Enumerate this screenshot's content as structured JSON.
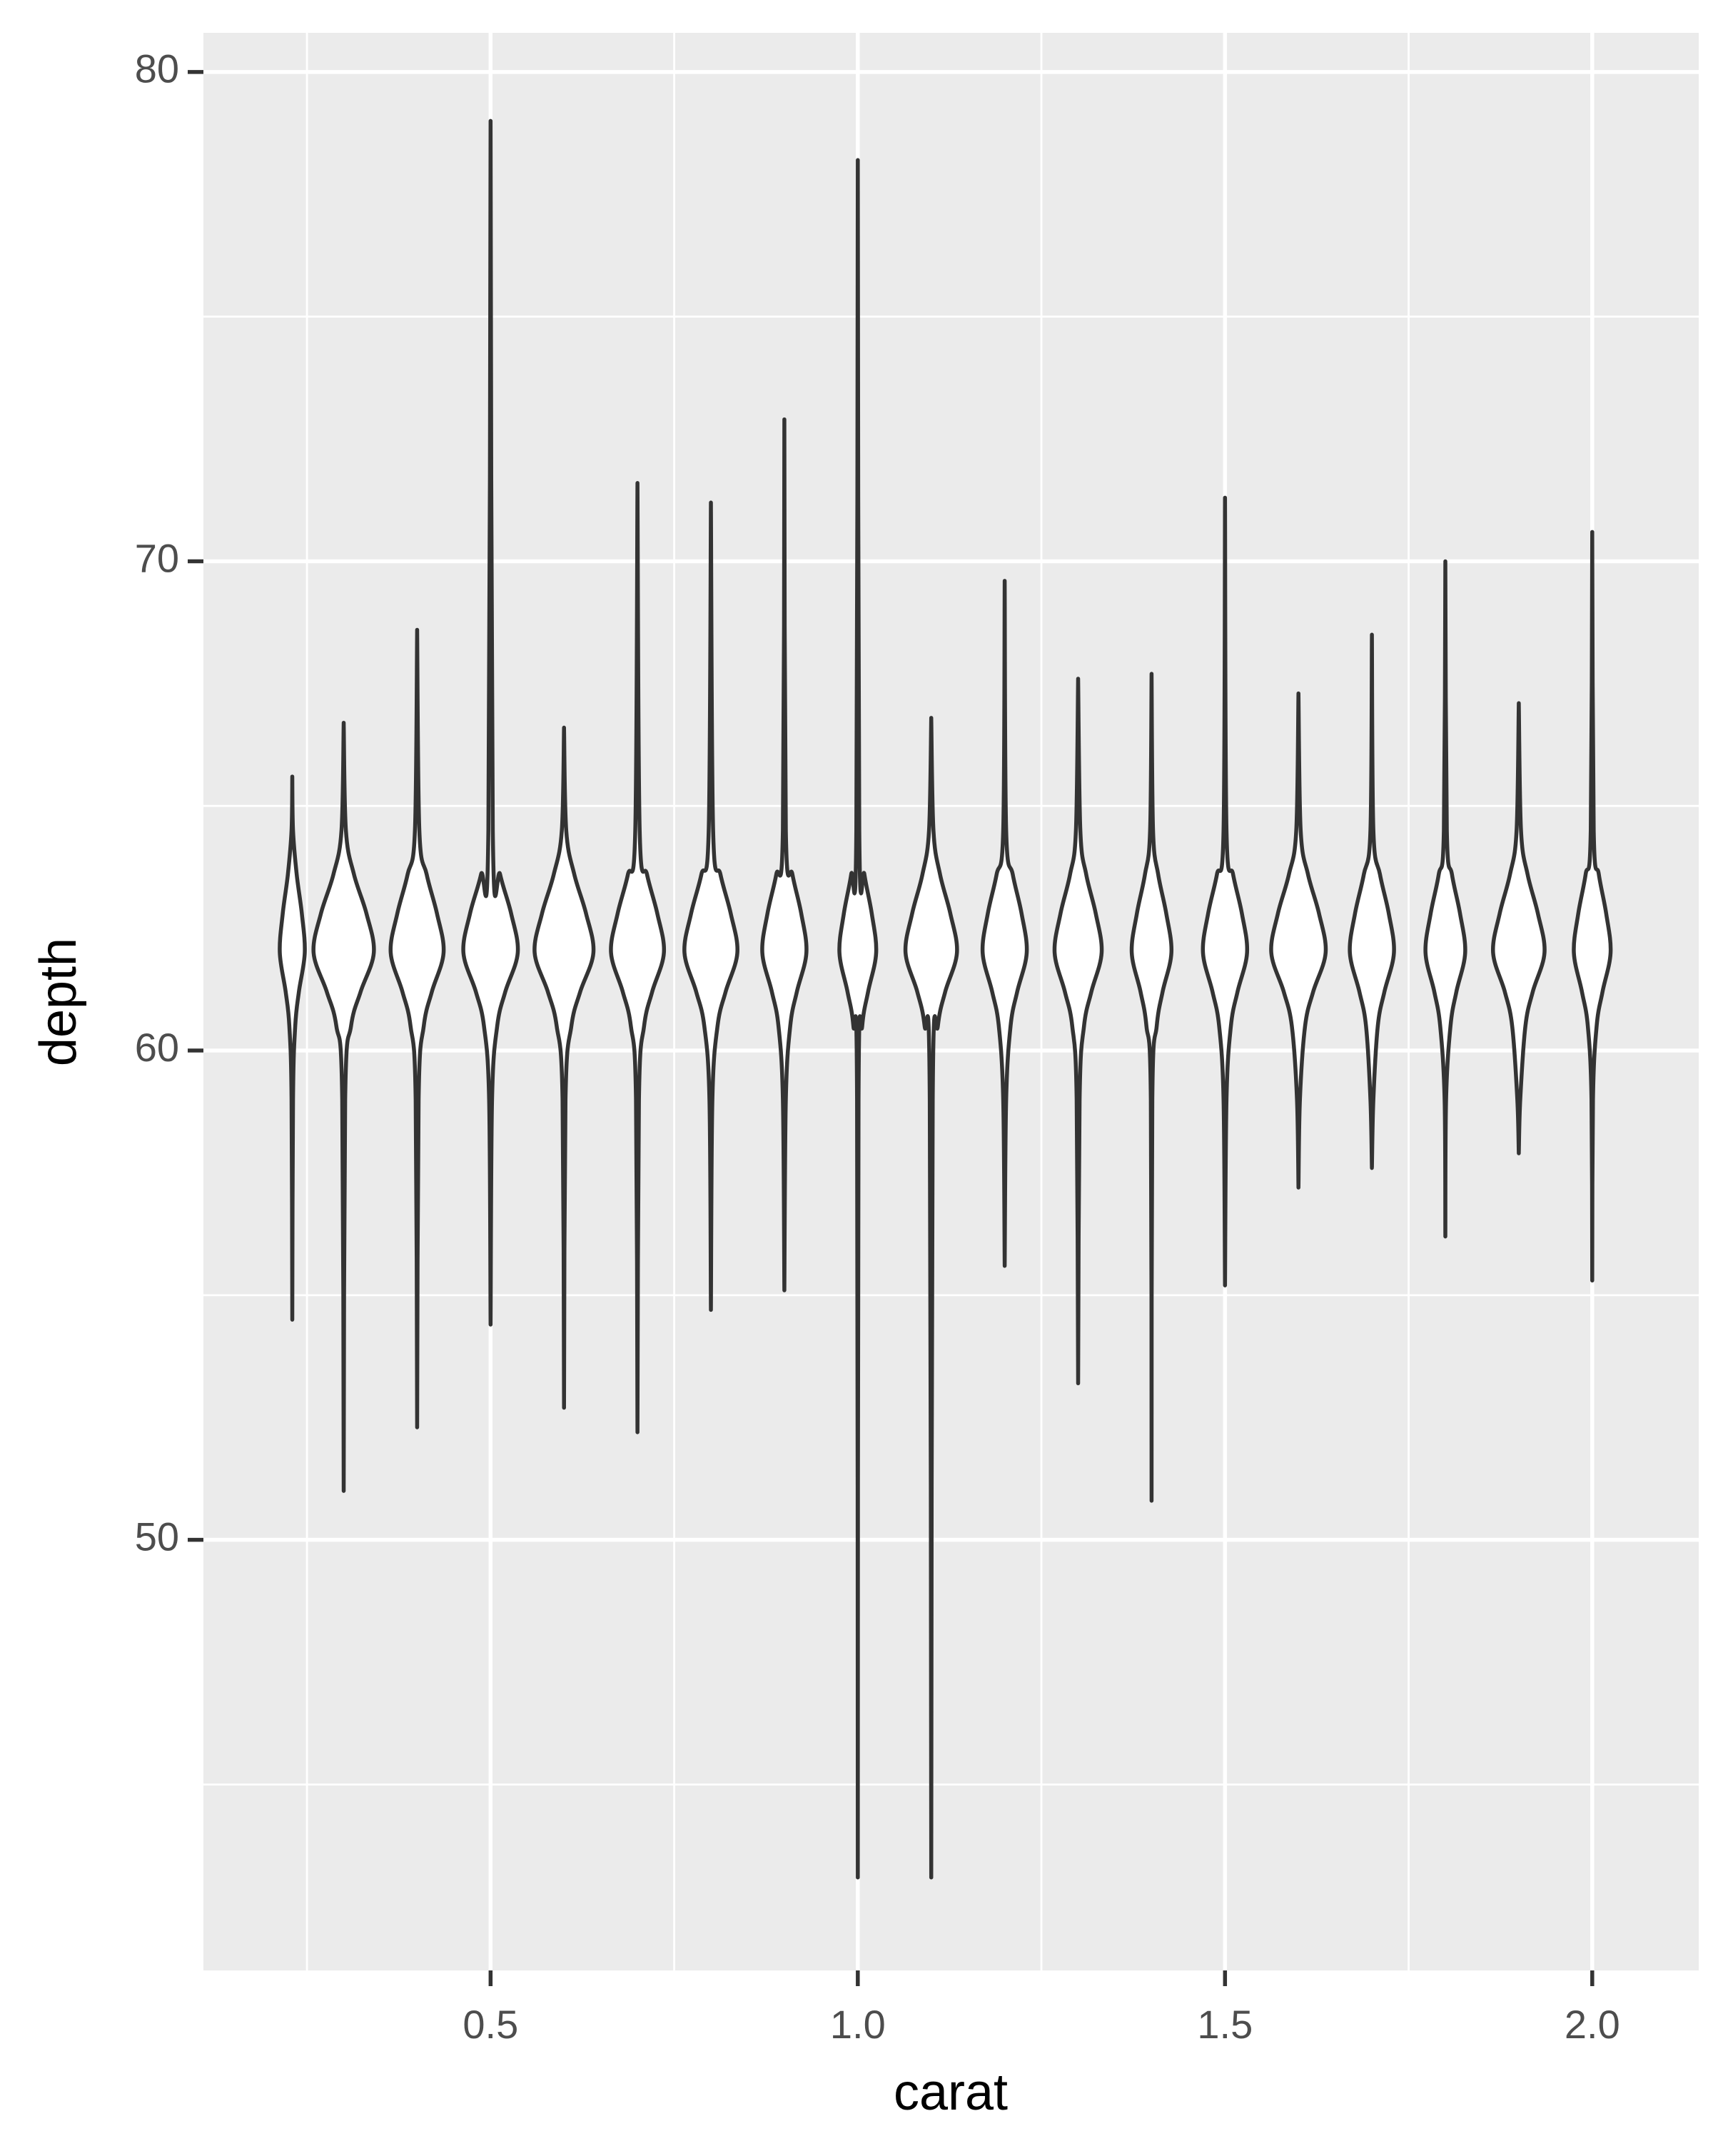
{
  "chart_data": {
    "type": "violin",
    "x_label": "carat",
    "y_label": "depth",
    "xlim": [
      0.109,
      2.145
    ],
    "ylim": [
      41.2,
      80.8
    ],
    "xticks": [
      {
        "value": 0.5,
        "label": "0.5"
      },
      {
        "value": 1,
        "label": "1.0"
      },
      {
        "value": 1.5,
        "label": "1.5"
      },
      {
        "value": 2,
        "label": "2.0"
      }
    ],
    "yticks": [
      50,
      60,
      70,
      80
    ],
    "x_minor_ticks": [
      0.25,
      0.75,
      1.25,
      1.75
    ],
    "y_minor_ticks": [
      45,
      55,
      65,
      75
    ],
    "grid": true,
    "background": "#ebebeb",
    "fill": "#ffffff",
    "line_color": "#333333",
    "violins": [
      {
        "x": 0.23,
        "depths": [
          54.5,
          59,
          60.5,
          61.2,
          62,
          62.8,
          63.6,
          64.5,
          65.6
        ],
        "widths": [
          0,
          0.001,
          0.004,
          0.009,
          0.017,
          0.013,
          0.006,
          0.001,
          0
        ]
      },
      {
        "x": 0.3,
        "depths": [
          51.0,
          59,
          60.5,
          61.2,
          62,
          62.8,
          63.6,
          64.5,
          66.7
        ],
        "widths": [
          0,
          0.002,
          0.01,
          0.023,
          0.041,
          0.031,
          0.014,
          0.003,
          0
        ]
      },
      {
        "x": 0.4,
        "depths": [
          52.3,
          59,
          60.5,
          61.2,
          62,
          62.8,
          63.6,
          64.5,
          68.6
        ],
        "widths": [
          0,
          0.002,
          0.009,
          0.02,
          0.036,
          0.027,
          0.013,
          0.003,
          0
        ]
      },
      {
        "x": 0.5,
        "depths": [
          54.4,
          59,
          60.5,
          61.2,
          62,
          62.8,
          63.6,
          64.5,
          79.0
        ],
        "widths": [
          0,
          0.002,
          0.009,
          0.02,
          0.037,
          0.028,
          0.013,
          0.003,
          0
        ]
      },
      {
        "x": 0.6,
        "depths": [
          52.7,
          59,
          60.5,
          61.2,
          62,
          62.8,
          63.6,
          64.5,
          66.6
        ],
        "widths": [
          0,
          0.002,
          0.01,
          0.022,
          0.04,
          0.03,
          0.014,
          0.003,
          0
        ]
      },
      {
        "x": 0.7,
        "depths": [
          52.2,
          59,
          60.5,
          61.2,
          62,
          62.8,
          63.6,
          64.5,
          71.6
        ],
        "widths": [
          0,
          0.002,
          0.009,
          0.02,
          0.036,
          0.027,
          0.013,
          0.003,
          0
        ]
      },
      {
        "x": 0.8,
        "depths": [
          54.7,
          59,
          60.5,
          61.2,
          62,
          62.8,
          63.6,
          64.5,
          71.2
        ],
        "widths": [
          0,
          0.002,
          0.009,
          0.02,
          0.036,
          0.027,
          0.013,
          0.003,
          0
        ]
      },
      {
        "x": 0.9,
        "depths": [
          55.1,
          59,
          60.5,
          61.2,
          62,
          62.8,
          63.6,
          64.5,
          72.9
        ],
        "widths": [
          0,
          0.002,
          0.008,
          0.017,
          0.03,
          0.023,
          0.011,
          0.002,
          0
        ]
      },
      {
        "x": 1.0,
        "depths": [
          43.1,
          59,
          60.5,
          61.2,
          62,
          62.8,
          63.6,
          64.5,
          78.2
        ],
        "widths": [
          0,
          0.001,
          0.006,
          0.014,
          0.025,
          0.019,
          0.009,
          0.002,
          0
        ]
      },
      {
        "x": 1.1,
        "depths": [
          43.1,
          59,
          60.5,
          61.2,
          62,
          62.8,
          63.6,
          64.5,
          66.8
        ],
        "widths": [
          0,
          0.002,
          0.009,
          0.019,
          0.035,
          0.026,
          0.012,
          0.003,
          0
        ]
      },
      {
        "x": 1.2,
        "depths": [
          55.6,
          59,
          60.5,
          61.2,
          62,
          62.8,
          63.6,
          64.5,
          69.6
        ],
        "widths": [
          0,
          0.002,
          0.008,
          0.017,
          0.03,
          0.023,
          0.011,
          0.002,
          0
        ]
      },
      {
        "x": 1.3,
        "depths": [
          53.2,
          59,
          60.5,
          61.2,
          62,
          62.8,
          63.6,
          64.5,
          67.6
        ],
        "widths": [
          0,
          0.002,
          0.008,
          0.018,
          0.032,
          0.024,
          0.011,
          0.003,
          0
        ]
      },
      {
        "x": 1.4,
        "depths": [
          50.8,
          59,
          60.5,
          61.2,
          62,
          62.8,
          63.6,
          64.5,
          67.7
        ],
        "widths": [
          0,
          0.001,
          0.007,
          0.015,
          0.027,
          0.02,
          0.009,
          0.002,
          0
        ]
      },
      {
        "x": 1.5,
        "depths": [
          55.2,
          59,
          60.5,
          61.2,
          62,
          62.8,
          63.6,
          64.5,
          71.3
        ],
        "widths": [
          0,
          0.002,
          0.008,
          0.017,
          0.03,
          0.023,
          0.011,
          0.002,
          0
        ]
      },
      {
        "x": 1.6,
        "depths": [
          57.2,
          59,
          60.5,
          61.2,
          62,
          62.8,
          63.6,
          64.5,
          67.3
        ],
        "widths": [
          0,
          0.002,
          0.009,
          0.02,
          0.037,
          0.028,
          0.013,
          0.003,
          0
        ]
      },
      {
        "x": 1.7,
        "depths": [
          57.6,
          59,
          60.5,
          61.2,
          62,
          62.8,
          63.6,
          64.5,
          68.5
        ],
        "widths": [
          0,
          0.002,
          0.008,
          0.017,
          0.03,
          0.023,
          0.011,
          0.002,
          0
        ]
      },
      {
        "x": 1.8,
        "depths": [
          56.2,
          59,
          60.5,
          61.2,
          62,
          62.8,
          63.6,
          64.5,
          70.0
        ],
        "widths": [
          0,
          0.001,
          0.007,
          0.015,
          0.027,
          0.02,
          0.009,
          0.002,
          0
        ]
      },
      {
        "x": 1.9,
        "depths": [
          57.9,
          59,
          60.5,
          61.2,
          62,
          62.8,
          63.6,
          64.5,
          67.1
        ],
        "widths": [
          0,
          0.002,
          0.009,
          0.019,
          0.035,
          0.026,
          0.012,
          0.003,
          0
        ]
      },
      {
        "x": 2.0,
        "depths": [
          55.3,
          59,
          60.5,
          61.2,
          62,
          62.8,
          63.6,
          64.5,
          70.6
        ],
        "widths": [
          0,
          0.001,
          0.006,
          0.014,
          0.025,
          0.019,
          0.009,
          0.002,
          0
        ]
      }
    ]
  }
}
